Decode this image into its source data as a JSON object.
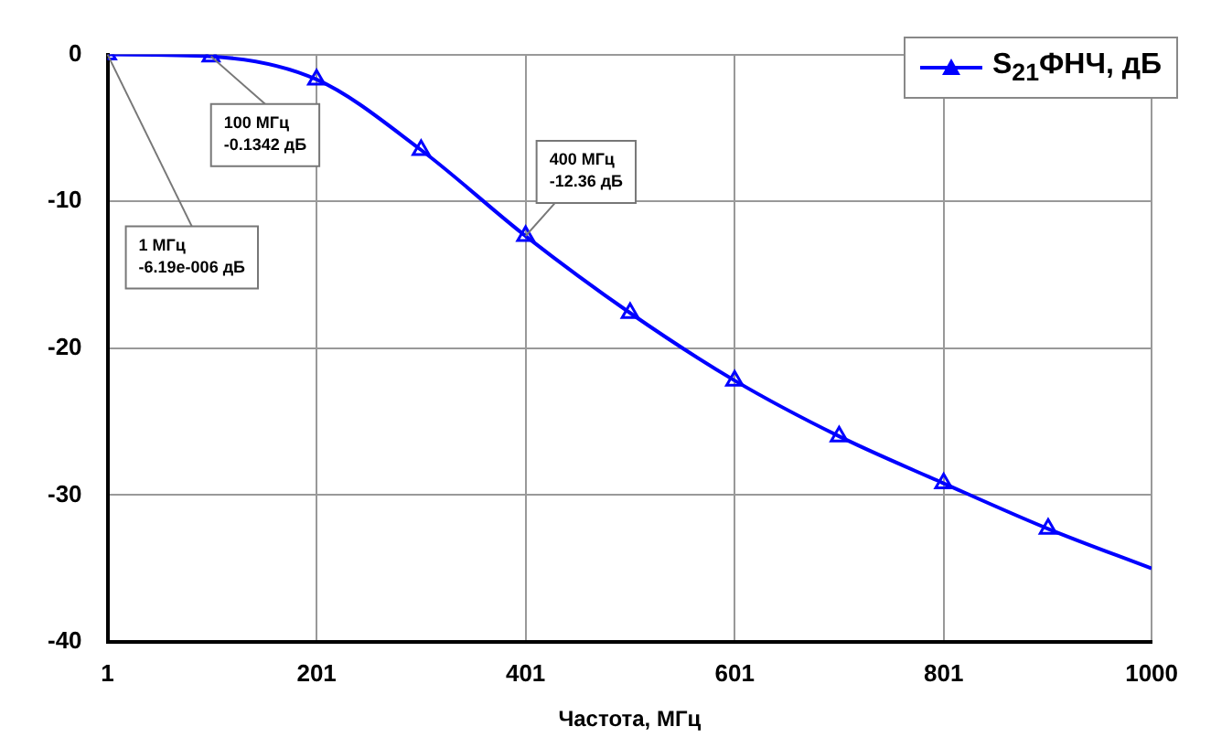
{
  "chart_data": {
    "type": "line",
    "xlabel": "Частота, МГц",
    "x": [
      1,
      100,
      201,
      301,
      401,
      501,
      601,
      701,
      801,
      901,
      1000
    ],
    "series": [
      {
        "name": "S$_{21}$ФНЧ, дБ",
        "color": "#0000ff",
        "values": [
          0,
          -0.1342,
          -1.7,
          -6.5,
          -12.36,
          -17.6,
          -22.2,
          -26.0,
          -29.2,
          -32.3,
          -35.0
        ]
      }
    ],
    "xlim": [
      1,
      1000
    ],
    "xticks": [
      1,
      201,
      401,
      601,
      801,
      1000
    ],
    "ylim": [
      -40,
      0
    ],
    "yticks": [
      0,
      -10,
      -20,
      -30,
      -40
    ],
    "grid": true,
    "legend": "top right",
    "marker": "triangle",
    "line_style": "solid",
    "annotations": [
      {
        "text": "1 МГц\n-6.19e-006 дБ",
        "x": 1,
        "y": -6.19e-06
      },
      {
        "text": "100 МГц\n-0.1342 дБ",
        "x": 100,
        "y": -0.1342
      },
      {
        "text": "400 МГц\n-12.36 дБ",
        "x": 401,
        "y": -12.36
      }
    ]
  }
}
